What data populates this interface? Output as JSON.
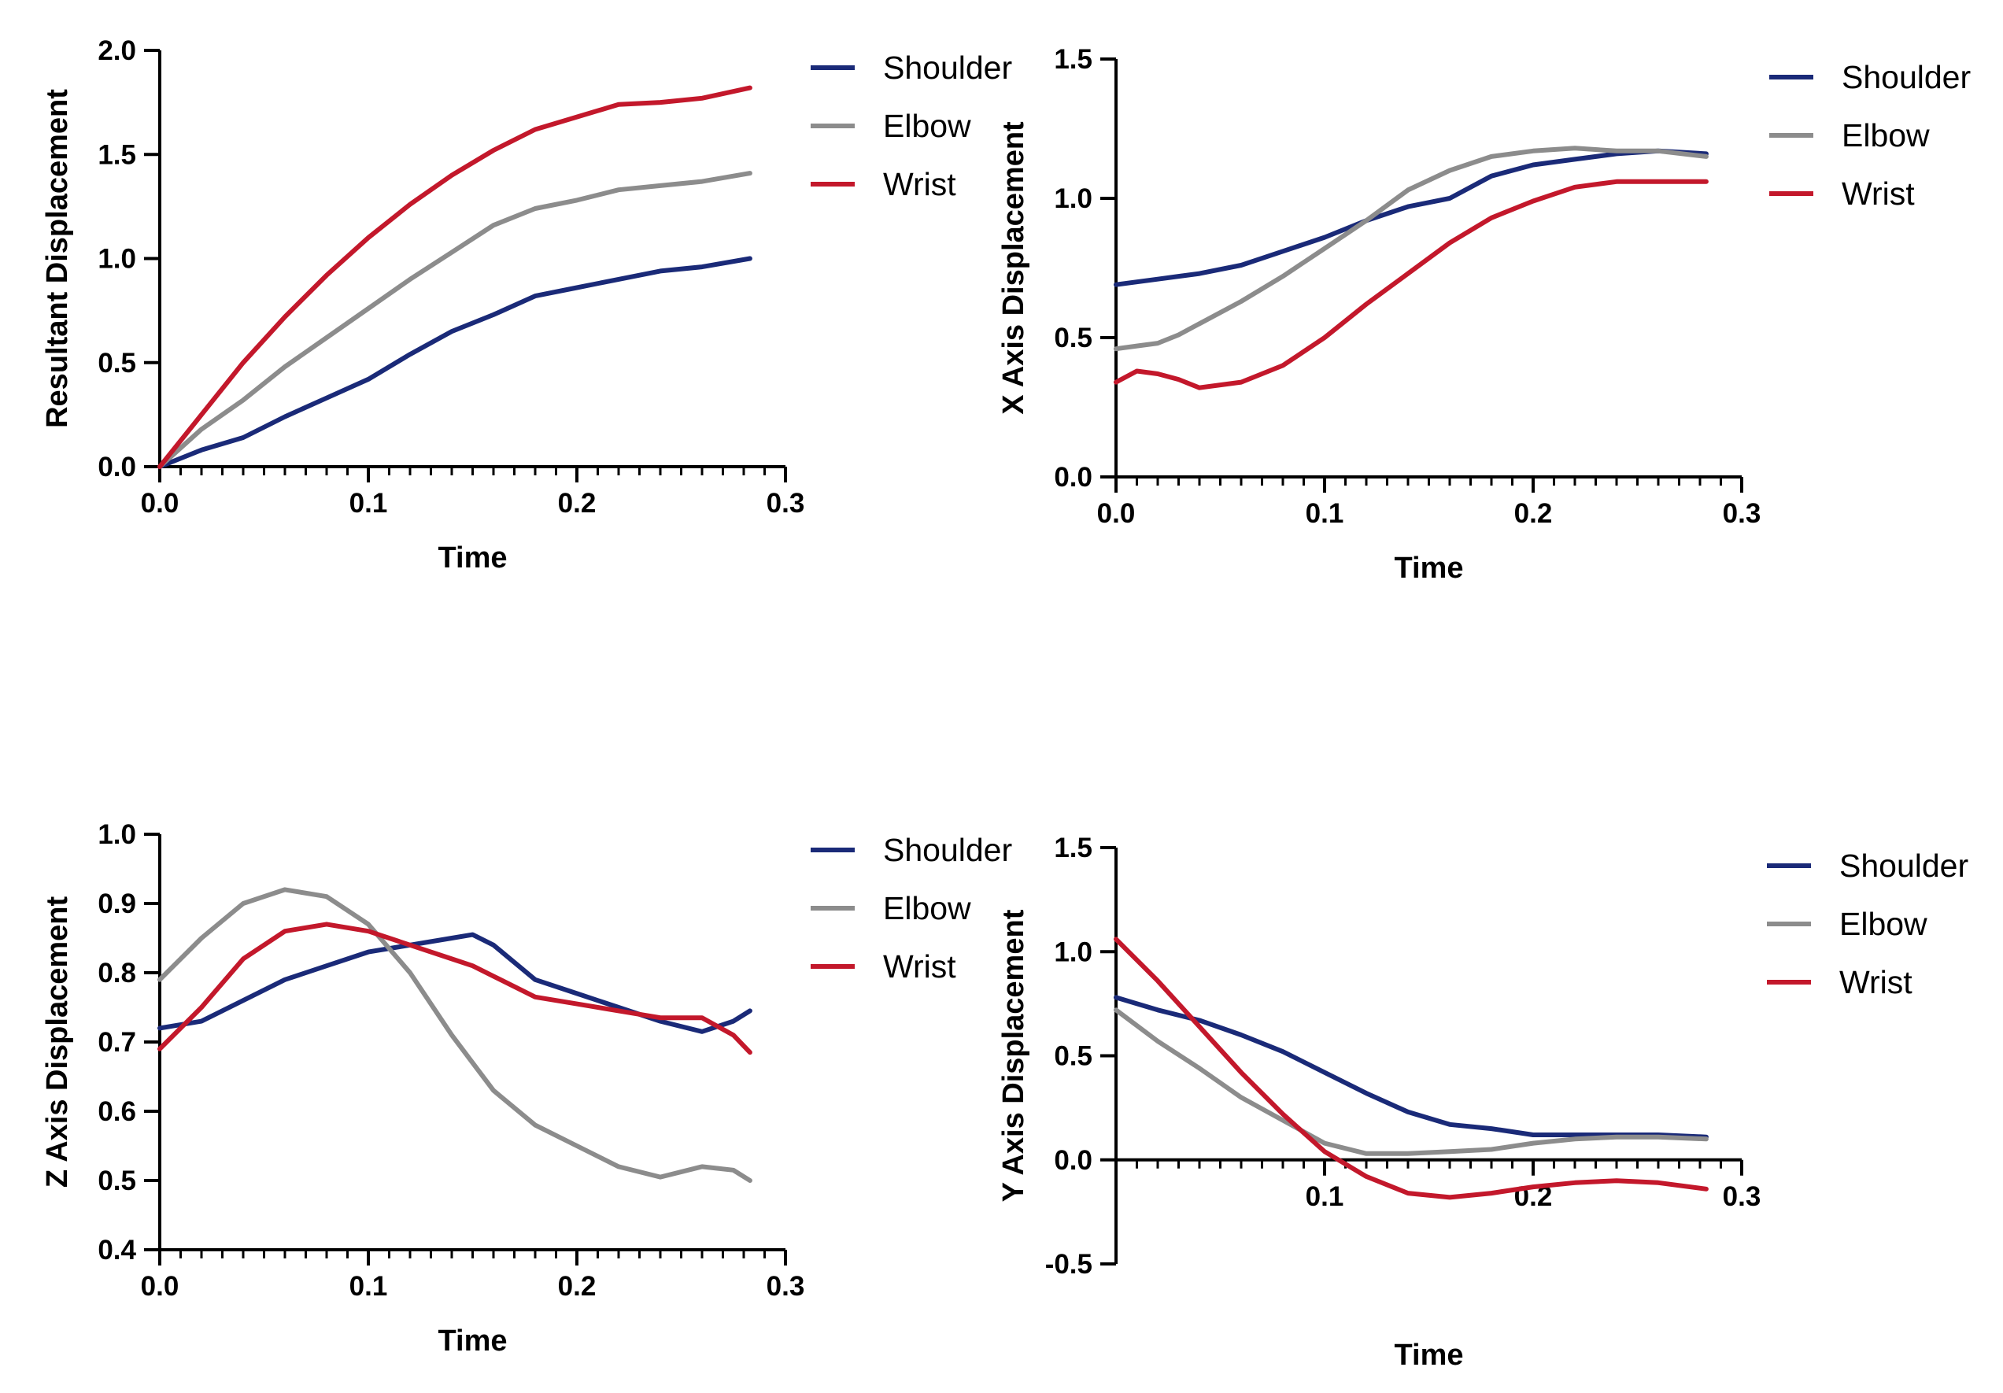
{
  "colors": {
    "shoulder": "#1a2a78",
    "elbow": "#8c8c8c",
    "wrist": "#c3182b"
  },
  "chart_data": [
    {
      "id": "resultant",
      "type": "line",
      "title": "",
      "xlabel": "Time",
      "ylabel": "Resultant Displacement",
      "xlim": [
        0,
        0.3
      ],
      "ylim": [
        0,
        2.0
      ],
      "xticks": [
        "0.0",
        "0.1",
        "0.2",
        "0.3"
      ],
      "yticks": [
        "0.0",
        "0.5",
        "1.0",
        "1.5",
        "2.0"
      ],
      "x_tick_values": [
        0,
        0.1,
        0.2,
        0.3
      ],
      "y_tick_values": [
        0,
        0.5,
        1.0,
        1.5,
        2.0
      ],
      "legend": "top-right",
      "x": [
        0,
        0.02,
        0.04,
        0.06,
        0.08,
        0.1,
        0.12,
        0.14,
        0.16,
        0.18,
        0.2,
        0.22,
        0.24,
        0.26,
        0.283
      ],
      "series": [
        {
          "name": "Shoulder",
          "color_key": "shoulder",
          "values": [
            0.0,
            0.08,
            0.14,
            0.24,
            0.33,
            0.42,
            0.54,
            0.65,
            0.73,
            0.82,
            0.86,
            0.9,
            0.94,
            0.96,
            1.0
          ]
        },
        {
          "name": "Elbow",
          "color_key": "elbow",
          "values": [
            0.0,
            0.18,
            0.32,
            0.48,
            0.62,
            0.76,
            0.9,
            1.03,
            1.16,
            1.24,
            1.28,
            1.33,
            1.35,
            1.37,
            1.41
          ]
        },
        {
          "name": "Wrist",
          "color_key": "wrist",
          "values": [
            0.0,
            0.25,
            0.5,
            0.72,
            0.92,
            1.1,
            1.26,
            1.4,
            1.52,
            1.62,
            1.68,
            1.74,
            1.75,
            1.77,
            1.82
          ]
        }
      ]
    },
    {
      "id": "x_axis",
      "type": "line",
      "title": "",
      "xlabel": "Time",
      "ylabel": "X Axis  Displacement",
      "xlim": [
        0,
        0.3
      ],
      "ylim": [
        0,
        1.5
      ],
      "xticks": [
        "0.0",
        "0.1",
        "0.2",
        "0.3"
      ],
      "yticks": [
        "0.0",
        "0.5",
        "1.0",
        "1.5"
      ],
      "x_tick_values": [
        0,
        0.1,
        0.2,
        0.3
      ],
      "y_tick_values": [
        0,
        0.5,
        1.0,
        1.5
      ],
      "legend": "top-right",
      "x": [
        0,
        0.01,
        0.02,
        0.03,
        0.04,
        0.06,
        0.08,
        0.1,
        0.12,
        0.14,
        0.16,
        0.18,
        0.2,
        0.22,
        0.24,
        0.26,
        0.283
      ],
      "series": [
        {
          "name": "Shoulder",
          "color_key": "shoulder",
          "values": [
            0.69,
            0.7,
            0.71,
            0.72,
            0.73,
            0.76,
            0.81,
            0.86,
            0.92,
            0.97,
            1.0,
            1.08,
            1.12,
            1.14,
            1.16,
            1.17,
            1.16
          ]
        },
        {
          "name": "Elbow",
          "color_key": "elbow",
          "values": [
            0.46,
            0.47,
            0.48,
            0.51,
            0.55,
            0.63,
            0.72,
            0.82,
            0.92,
            1.03,
            1.1,
            1.15,
            1.17,
            1.18,
            1.17,
            1.17,
            1.15
          ]
        },
        {
          "name": "Wrist",
          "color_key": "wrist",
          "values": [
            0.34,
            0.38,
            0.37,
            0.35,
            0.32,
            0.34,
            0.4,
            0.5,
            0.62,
            0.73,
            0.84,
            0.93,
            0.99,
            1.04,
            1.06,
            1.06,
            1.06
          ]
        }
      ]
    },
    {
      "id": "z_axis",
      "type": "line",
      "title": "",
      "xlabel": "Time",
      "ylabel": "Z Axis  Displacement",
      "xlim": [
        0,
        0.3
      ],
      "ylim": [
        0.4,
        1.0
      ],
      "xticks": [
        "0.0",
        "0.1",
        "0.2",
        "0.3"
      ],
      "yticks": [
        "0.4",
        "0.5",
        "0.6",
        "0.7",
        "0.8",
        "0.9",
        "1.0"
      ],
      "x_tick_values": [
        0,
        0.1,
        0.2,
        0.3
      ],
      "y_tick_values": [
        0.4,
        0.5,
        0.6,
        0.7,
        0.8,
        0.9,
        1.0
      ],
      "legend": "top-right",
      "x": [
        0,
        0.02,
        0.04,
        0.06,
        0.08,
        0.1,
        0.12,
        0.14,
        0.15,
        0.16,
        0.18,
        0.2,
        0.22,
        0.24,
        0.26,
        0.275,
        0.283
      ],
      "series": [
        {
          "name": "Shoulder",
          "color_key": "shoulder",
          "values": [
            0.72,
            0.73,
            0.76,
            0.79,
            0.81,
            0.83,
            0.84,
            0.85,
            0.855,
            0.84,
            0.79,
            0.77,
            0.75,
            0.73,
            0.715,
            0.73,
            0.745
          ]
        },
        {
          "name": "Elbow",
          "color_key": "elbow",
          "values": [
            0.79,
            0.85,
            0.9,
            0.92,
            0.91,
            0.87,
            0.8,
            0.71,
            0.67,
            0.63,
            0.58,
            0.55,
            0.52,
            0.505,
            0.52,
            0.515,
            0.5
          ]
        },
        {
          "name": "Wrist",
          "color_key": "wrist",
          "values": [
            0.69,
            0.75,
            0.82,
            0.86,
            0.87,
            0.86,
            0.84,
            0.82,
            0.81,
            0.795,
            0.765,
            0.755,
            0.745,
            0.735,
            0.735,
            0.71,
            0.685
          ]
        }
      ]
    },
    {
      "id": "y_axis",
      "type": "line",
      "title": "",
      "xlabel": "Time",
      "ylabel": "Y Axis  Displacement",
      "xlim": [
        0,
        0.3
      ],
      "ylim": [
        -0.5,
        1.5
      ],
      "xticks": [
        "0.1",
        "0.2",
        "0.3"
      ],
      "yticks": [
        "-0.5",
        "0.0",
        "0.5",
        "1.0",
        "1.5"
      ],
      "x_tick_values": [
        0.1,
        0.2,
        0.3
      ],
      "y_tick_values": [
        -0.5,
        0,
        0.5,
        1.0,
        1.5
      ],
      "x_axis_at_zero": true,
      "legend": "top-right",
      "x": [
        0,
        0.02,
        0.04,
        0.06,
        0.08,
        0.1,
        0.12,
        0.14,
        0.16,
        0.18,
        0.2,
        0.22,
        0.24,
        0.26,
        0.283
      ],
      "series": [
        {
          "name": "Shoulder",
          "color_key": "shoulder",
          "values": [
            0.78,
            0.72,
            0.67,
            0.6,
            0.52,
            0.42,
            0.32,
            0.23,
            0.17,
            0.15,
            0.12,
            0.12,
            0.12,
            0.12,
            0.11
          ]
        },
        {
          "name": "Elbow",
          "color_key": "elbow",
          "values": [
            0.72,
            0.57,
            0.44,
            0.3,
            0.19,
            0.08,
            0.03,
            0.03,
            0.04,
            0.05,
            0.08,
            0.1,
            0.11,
            0.11,
            0.1
          ]
        },
        {
          "name": "Wrist",
          "color_key": "wrist",
          "values": [
            1.06,
            0.86,
            0.64,
            0.42,
            0.22,
            0.04,
            -0.08,
            -0.16,
            -0.18,
            -0.16,
            -0.13,
            -0.11,
            -0.1,
            -0.11,
            -0.14
          ]
        }
      ]
    }
  ]
}
